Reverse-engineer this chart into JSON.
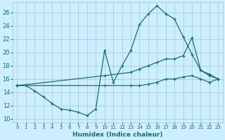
{
  "xlabel": "Humidex (Indice chaleur)",
  "bg_color": "#cceeff",
  "grid_color": "#aacccc",
  "line_color": "#1a7060",
  "xlim": [
    -0.5,
    23.5
  ],
  "ylim": [
    9.5,
    27.5
  ],
  "yticks": [
    10,
    12,
    14,
    16,
    18,
    20,
    22,
    24,
    26
  ],
  "xticks": [
    0,
    1,
    2,
    3,
    4,
    5,
    6,
    7,
    8,
    9,
    10,
    11,
    12,
    13,
    14,
    15,
    16,
    17,
    18,
    19,
    20,
    21,
    22,
    23
  ],
  "series": [
    {
      "x": [
        0,
        1,
        2,
        3,
        4,
        5,
        6,
        7,
        8,
        9,
        10,
        11,
        12,
        13,
        14,
        15,
        16,
        17,
        18,
        19,
        20,
        21,
        22,
        23
      ],
      "y": [
        15,
        15,
        14.2,
        13.3,
        12.3,
        11.5,
        11.3,
        11.0,
        10.5,
        11.5,
        20.3,
        15.5,
        18,
        20.3,
        24.2,
        25.8,
        27.0,
        25.8,
        25.0,
        22.3,
        19.7,
        17.3,
        16.7,
        16.0
      ]
    },
    {
      "x": [
        0,
        10,
        13,
        14,
        15,
        16,
        17,
        18,
        19,
        20,
        21,
        22,
        23
      ],
      "y": [
        15,
        16.5,
        17,
        17.5,
        18,
        18.5,
        19,
        19,
        19.5,
        22.2,
        17.3,
        16.5,
        16.0
      ]
    },
    {
      "x": [
        0,
        10,
        13,
        14,
        15,
        16,
        17,
        18,
        19,
        20,
        21,
        22,
        23
      ],
      "y": [
        15,
        15,
        15,
        15,
        15.2,
        15.5,
        16,
        16,
        16.3,
        16.5,
        16,
        15.5,
        16.0
      ]
    }
  ]
}
